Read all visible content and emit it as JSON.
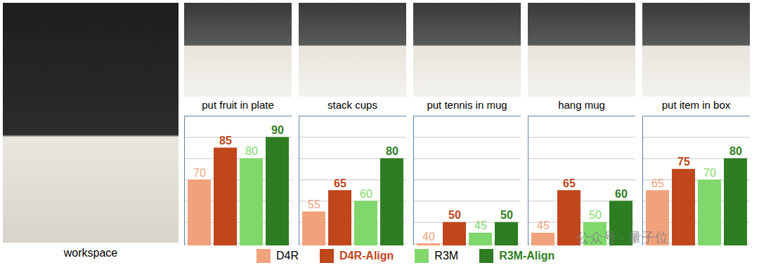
{
  "workspace_label": "workspace",
  "watermark": "公众号 · 量子位",
  "chart_data": [
    {
      "type": "bar",
      "title": "put fruit in plate",
      "categories": [
        "D4R",
        "D4R-Align",
        "R3M",
        "R3M-Align"
      ],
      "values": [
        70,
        85,
        80,
        90
      ],
      "colors": [
        "#f0a27c",
        "#c0461c",
        "#80d86c",
        "#2f7d22"
      ],
      "ylim": [
        39,
        100
      ],
      "yticks": [
        40,
        50,
        60,
        70,
        80,
        90,
        100
      ],
      "grid": true,
      "tick_labels": false,
      "data_labels": true,
      "legend": "bottom"
    },
    {
      "type": "bar",
      "title": "stack cups",
      "categories": [
        "D4R",
        "D4R-Align",
        "R3M",
        "R3M-Align"
      ],
      "values": [
        55,
        65,
        60,
        80
      ],
      "colors": [
        "#f0a27c",
        "#c0461c",
        "#80d86c",
        "#2f7d22"
      ],
      "ylim": [
        39,
        100
      ],
      "yticks": [
        40,
        50,
        60,
        70,
        80,
        90,
        100
      ],
      "grid": true,
      "tick_labels": false,
      "data_labels": true
    },
    {
      "type": "bar",
      "title": "put tennis in mug",
      "categories": [
        "D4R",
        "D4R-Align",
        "R3M",
        "R3M-Align"
      ],
      "values": [
        40,
        50,
        45,
        50
      ],
      "colors": [
        "#f0a27c",
        "#c0461c",
        "#80d86c",
        "#2f7d22"
      ],
      "ylim": [
        39,
        100
      ],
      "yticks": [
        40,
        50,
        60,
        70,
        80,
        90,
        100
      ],
      "grid": true,
      "tick_labels": false,
      "data_labels": true
    },
    {
      "type": "bar",
      "title": "hang mug",
      "categories": [
        "D4R",
        "D4R-Align",
        "R3M",
        "R3M-Align"
      ],
      "values": [
        45,
        65,
        50,
        60
      ],
      "colors": [
        "#f0a27c",
        "#c0461c",
        "#80d86c",
        "#2f7d22"
      ],
      "ylim": [
        39,
        100
      ],
      "yticks": [
        40,
        50,
        60,
        70,
        80,
        90,
        100
      ],
      "grid": true,
      "tick_labels": false,
      "data_labels": true
    },
    {
      "type": "bar",
      "title": "put item in box",
      "categories": [
        "D4R",
        "D4R-Align",
        "R3M",
        "R3M-Align"
      ],
      "values": [
        65,
        75,
        70,
        80
      ],
      "colors": [
        "#f0a27c",
        "#c0461c",
        "#80d86c",
        "#2f7d22"
      ],
      "ylim": [
        39,
        100
      ],
      "yticks": [
        40,
        50,
        60,
        70,
        80,
        90,
        100
      ],
      "grid": true,
      "tick_labels": false,
      "data_labels": true
    }
  ]
}
